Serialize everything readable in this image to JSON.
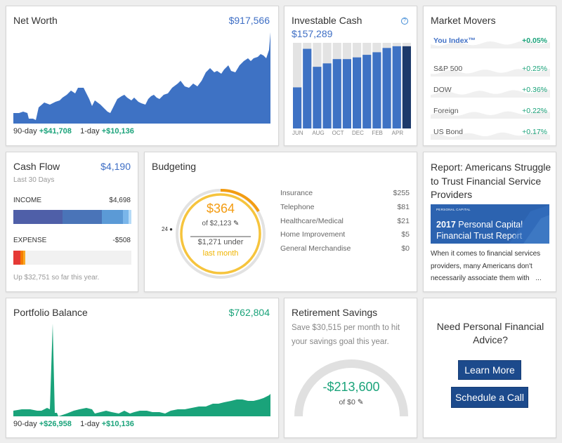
{
  "net_worth": {
    "title": "Net Worth",
    "value": "$917,566",
    "foot": [
      {
        "label": "90-day",
        "value": "+$41,708"
      },
      {
        "label": "1-day",
        "value": "+$10,136"
      }
    ],
    "color": "#3e72c4"
  },
  "investable_cash": {
    "title": "Investable Cash",
    "value": "$157,289",
    "help": "?",
    "chart_data": {
      "type": "bar",
      "categories": [
        "JUN",
        "",
        "AUG",
        "",
        "OCT",
        "",
        "DEC",
        "",
        "FEB",
        "",
        "APR",
        ""
      ],
      "values": [
        0.48,
        0.93,
        0.72,
        0.76,
        0.81,
        0.81,
        0.83,
        0.86,
        0.89,
        0.94,
        0.96,
        0.96
      ],
      "ylim": [
        0,
        1
      ]
    },
    "month_labels": [
      "JUN",
      "AUG",
      "OCT",
      "DEC",
      "FEB",
      "APR"
    ]
  },
  "market_movers": {
    "title": "Market Movers",
    "items": [
      {
        "label": "You Index™",
        "value": "+0.05%",
        "highlight": true
      },
      {
        "label": "S&P 500",
        "value": "+0.25%"
      },
      {
        "label": "DOW",
        "value": "+0.36%"
      },
      {
        "label": "Foreign",
        "value": "+0.22%"
      },
      {
        "label": "US Bond",
        "value": "+0.17%"
      }
    ]
  },
  "cash_flow": {
    "title": "Cash Flow",
    "value": "$4,190",
    "subtitle": "Last 30 Days",
    "income_label": "INCOME",
    "income_value": "$4,698",
    "expense_label": "EXPENSE",
    "expense_value": "-$508",
    "footer": "Up $32,751 so far this year."
  },
  "budgeting": {
    "title": "Budgeting",
    "spent": "$364",
    "of_budget": "of $2,123",
    "under": "$1,271 under",
    "period": "last month",
    "day_marker": "24",
    "categories": [
      {
        "label": "Insurance",
        "value": "$255"
      },
      {
        "label": "Telephone",
        "value": "$81"
      },
      {
        "label": "Healthcare/Medical",
        "value": "$21"
      },
      {
        "label": "Home Improvement",
        "value": "$5"
      },
      {
        "label": "General Merchandise",
        "value": "$0"
      }
    ]
  },
  "report": {
    "title": "Report: Americans Struggle to Trust Financial Service Providers",
    "banner_brand": "PERSONAL CAPITAL",
    "banner_year": "2017",
    "banner_line1": "Personal Capital",
    "banner_line2": "Financial Trust Report",
    "text": "When it comes to financial services providers, many Americans don't necessarily associate them with",
    "more": "..."
  },
  "portfolio_balance": {
    "title": "Portfolio Balance",
    "value": "$762,804",
    "foot": [
      {
        "label": "90-day",
        "value": "+$26,958"
      },
      {
        "label": "1-day",
        "value": "+$10,136"
      }
    ],
    "color": "#1aa37a"
  },
  "retirement": {
    "title": "Retirement Savings",
    "subtitle": "Save $30,515 per month to hit your savings goal this year.",
    "value": "-$213,600",
    "of": "of $0"
  },
  "advice": {
    "title": "Need Personal Financial Advice?",
    "learn_more": "Learn More",
    "schedule": "Schedule a Call"
  }
}
